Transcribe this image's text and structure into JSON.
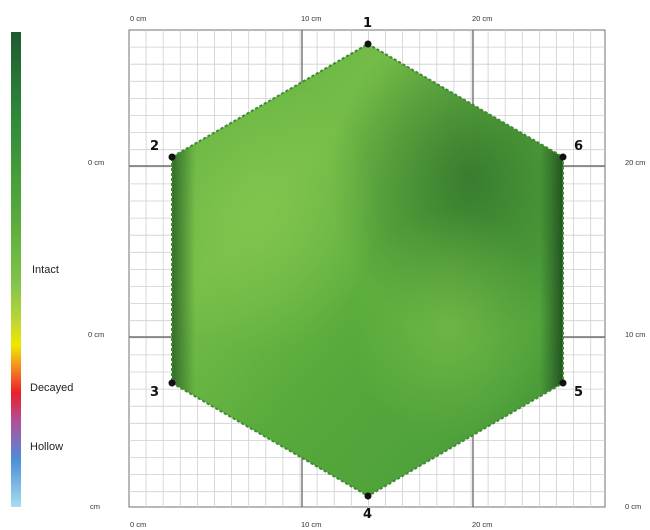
{
  "legend": {
    "labels": {
      "intact": "Intact",
      "decayed": "Decayed",
      "hollow": "Hollow"
    },
    "colors": [
      "#1e5a30",
      "#2e8a3a",
      "#55a83a",
      "#7cc24a",
      "#8dc63f",
      "#f2e600",
      "#f58220",
      "#e8202a",
      "#b0509a",
      "#4b8fd6",
      "#a8dcf0"
    ]
  },
  "axes": {
    "top": [
      "0 cm",
      "10 cm",
      "20 cm"
    ],
    "bottom": [
      "0 cm",
      "10 cm",
      "20 cm"
    ],
    "left": [
      "0 cm",
      "0 cm",
      "cm"
    ],
    "right": [
      "20 cm",
      "10 cm",
      "0 cm"
    ]
  },
  "nodes": [
    "1",
    "2",
    "3",
    "4",
    "5",
    "6"
  ],
  "colors": {
    "grid_minor": "#cfcfcf",
    "grid_major": "#707070",
    "fill_base": "#4fa638",
    "fill_light": "#7cc24a",
    "fill_dark": "#2e7a2e"
  }
}
